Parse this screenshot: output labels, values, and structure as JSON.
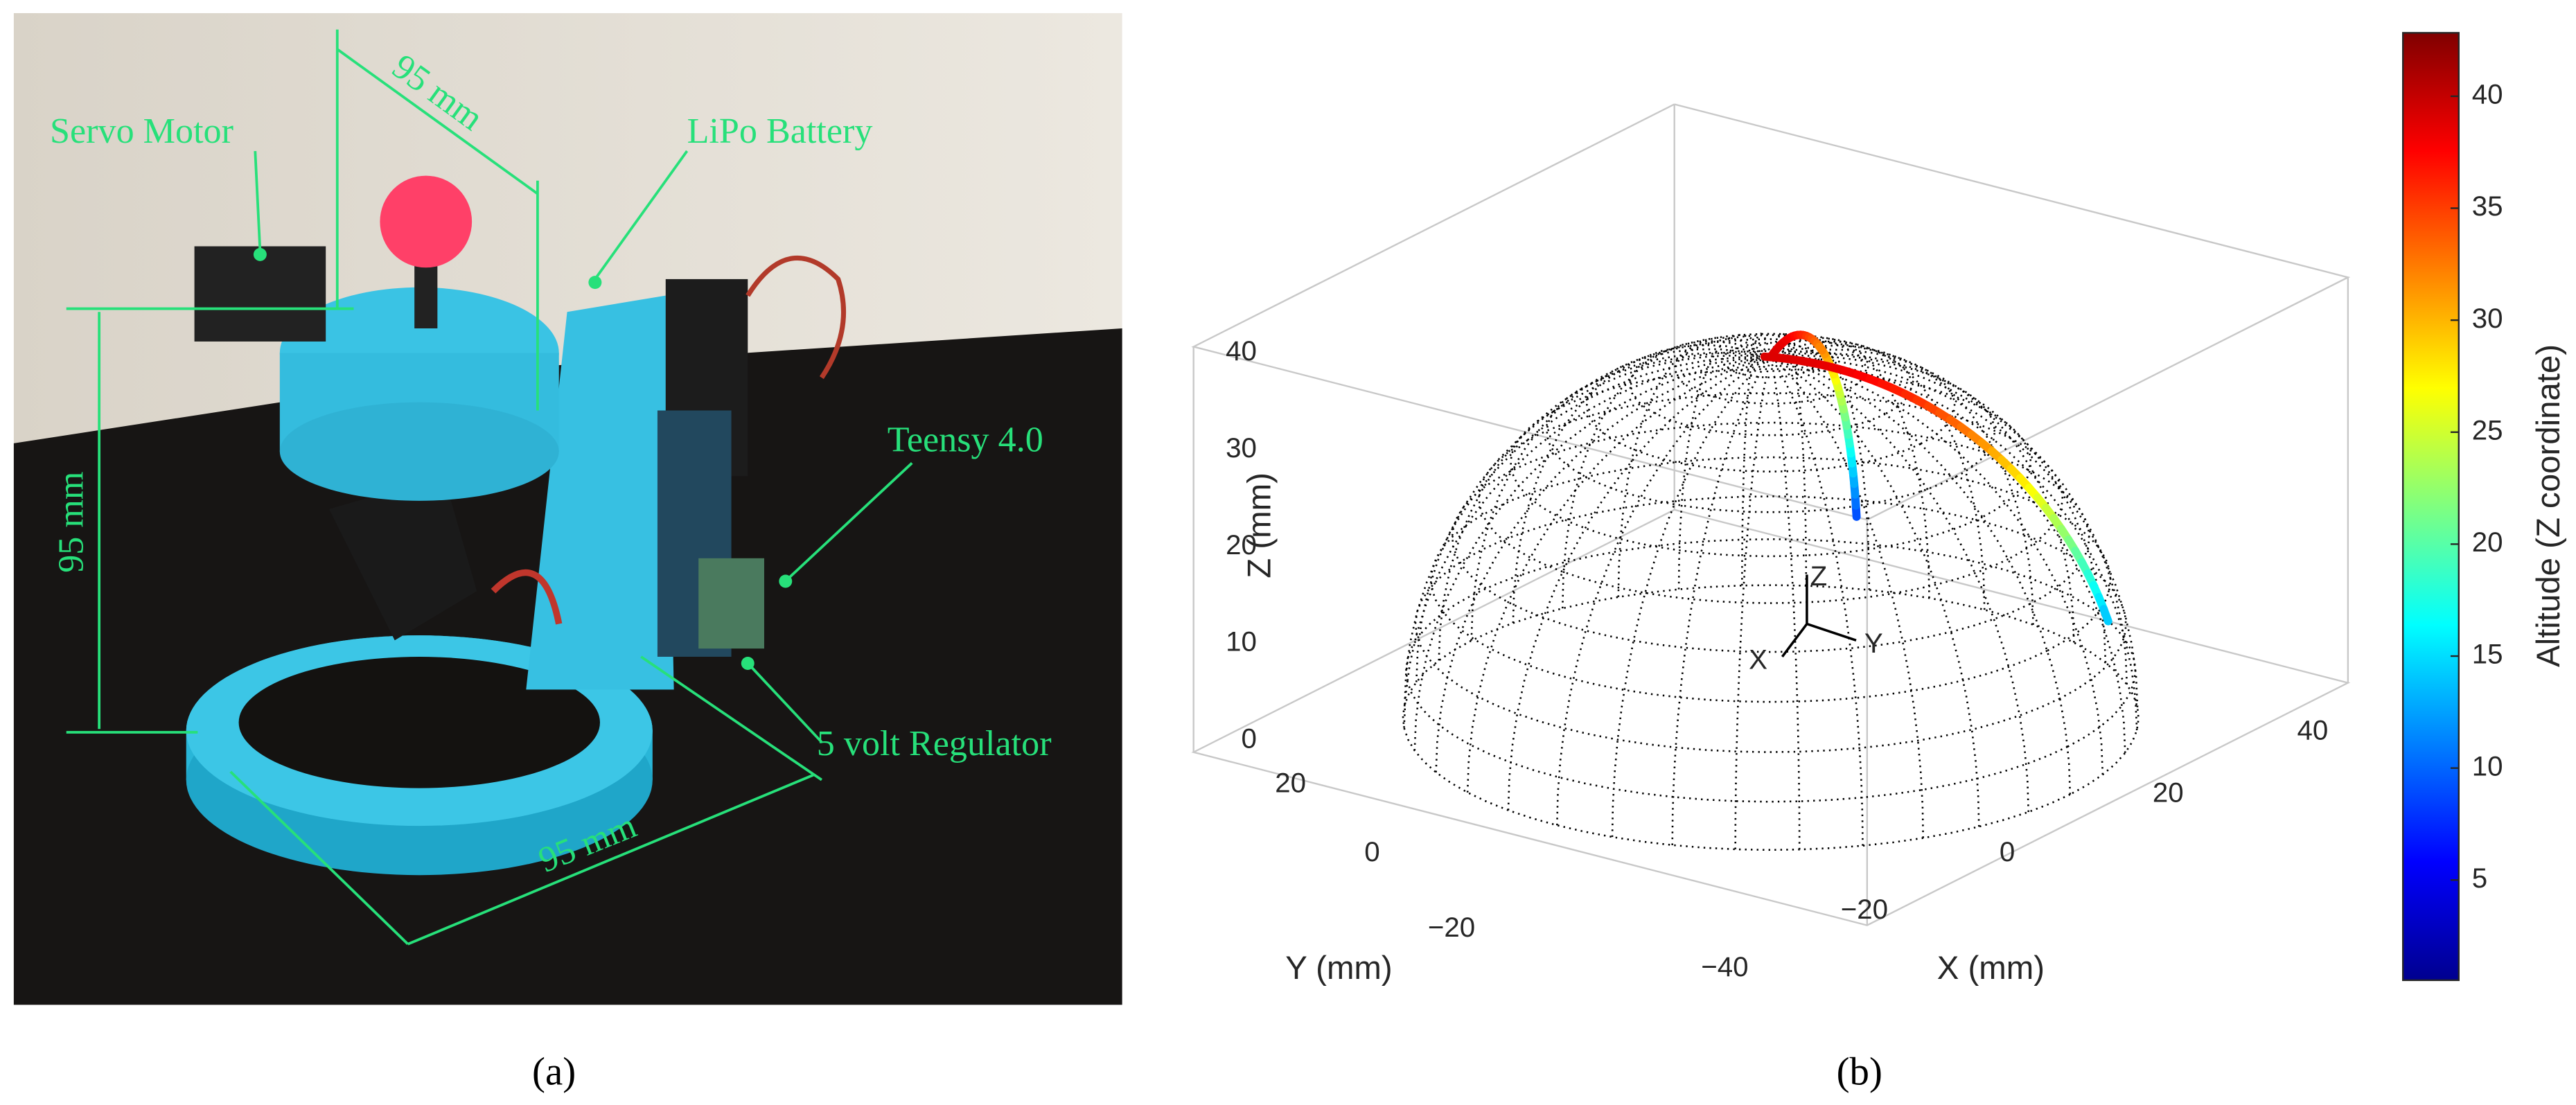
{
  "panel_a": {
    "labels": {
      "servo_motor": "Servo Motor",
      "width_top": "95 mm",
      "lipo_battery": "LiPo Battery",
      "teensy": "Teensy 4.0",
      "height": "95 mm",
      "regulator": "5 volt Regulator",
      "width_base": "95 mm"
    }
  },
  "panel_b": {
    "z_axis": {
      "label": "Z (mm)",
      "ticks": [
        "0",
        "10",
        "20",
        "30",
        "40"
      ]
    },
    "y_axis": {
      "label": "Y (mm)",
      "ticks": [
        "20",
        "0",
        "−20"
      ]
    },
    "x_axis": {
      "label": "X (mm)",
      "ticks": [
        "−40",
        "−20",
        "0",
        "20",
        "40"
      ]
    },
    "triad": [
      "X",
      "Y",
      "Z"
    ],
    "colorbar": {
      "label": "Altitude (Z coordinate)",
      "ticks": [
        "5",
        "10",
        "15",
        "20",
        "25",
        "30",
        "35",
        "40"
      ]
    }
  },
  "captions": [
    "(a)",
    "(b)"
  ]
}
